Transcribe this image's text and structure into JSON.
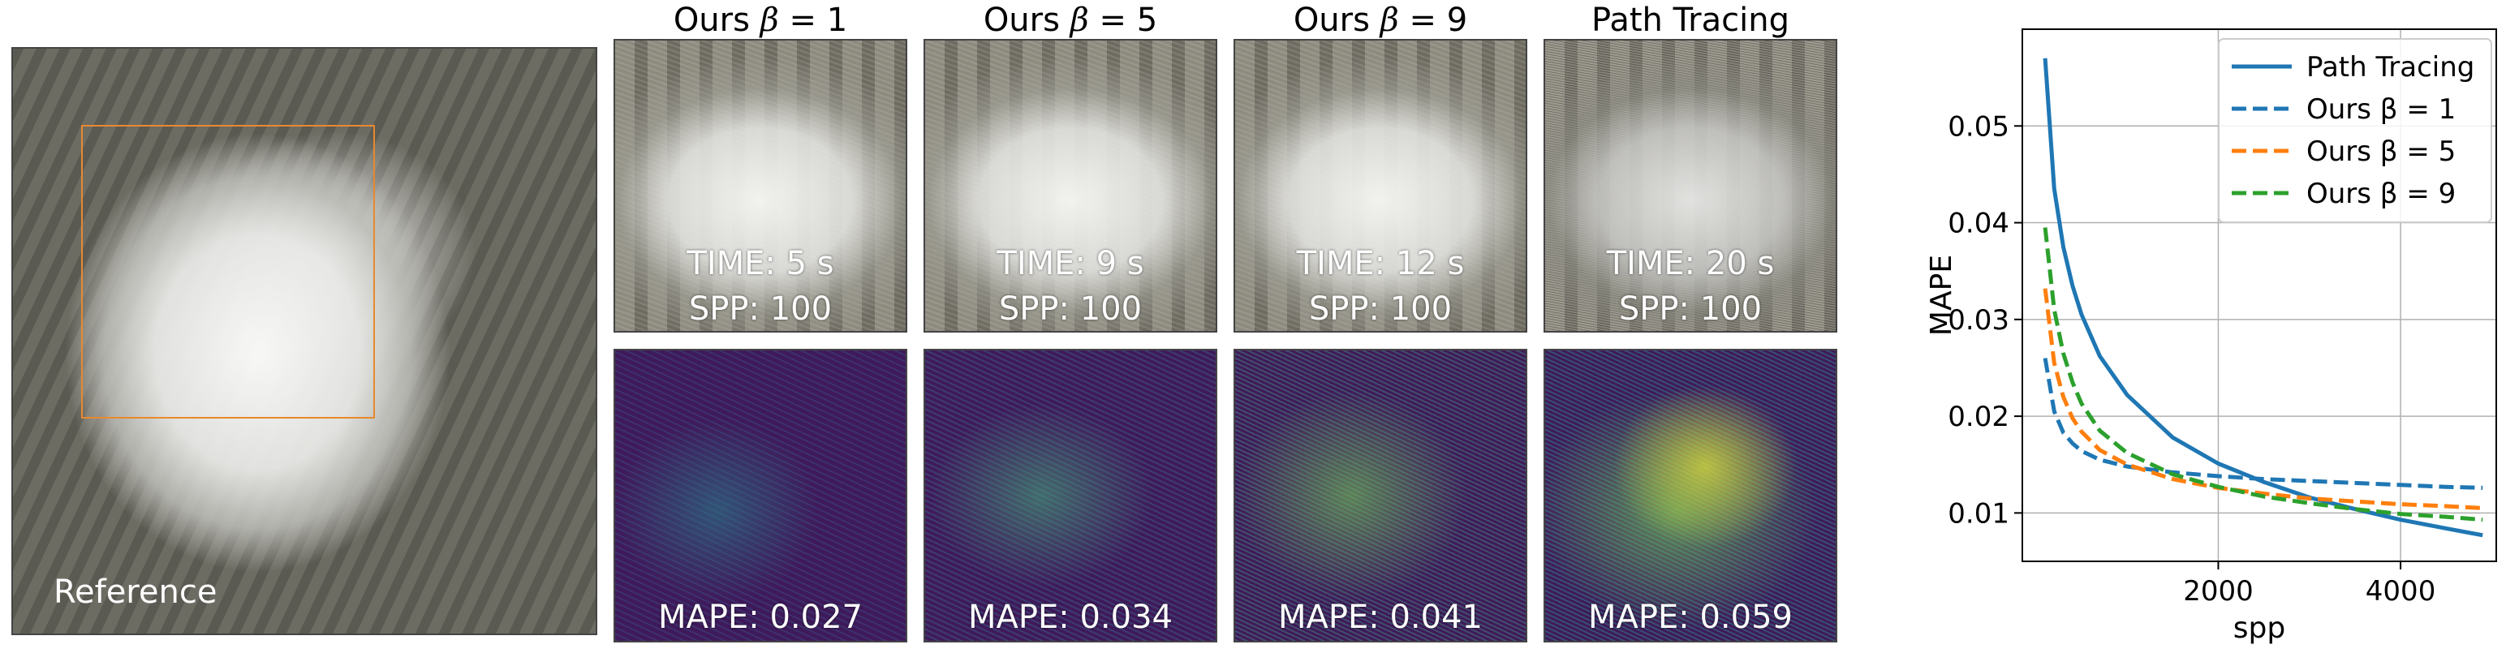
{
  "reference": {
    "label": "Reference"
  },
  "columns": [
    {
      "title_prefix": "Ours ",
      "beta_symbol": "β",
      "beta_value": " = 1",
      "time": "TIME: 5 s",
      "spp": "SPP: 100",
      "mape": "MAPE: 0.027"
    },
    {
      "title_prefix": "Ours ",
      "beta_symbol": "β",
      "beta_value": " = 5",
      "time": "TIME: 9 s",
      "spp": "SPP: 100",
      "mape": "MAPE: 0.034"
    },
    {
      "title_prefix": "Ours ",
      "beta_symbol": "β",
      "beta_value": " = 9",
      "time": "TIME: 12 s",
      "spp": "SPP: 100",
      "mape": "MAPE: 0.041"
    },
    {
      "title_prefix": "Path Tracing",
      "beta_symbol": "",
      "beta_value": "",
      "time": "TIME: 20 s",
      "spp": "SPP: 100",
      "mape": "MAPE: 0.059"
    }
  ],
  "colors": {
    "path_tracing": "#1f77b4",
    "beta1": "#1f77b4",
    "beta5": "#ff7f0e",
    "beta9": "#2ca02c",
    "crop_box": "#e8892d"
  },
  "chart_data": {
    "type": "line",
    "xlabel": "spp",
    "ylabel": "MAPE",
    "xlim": [
      -150,
      5050
    ],
    "ylim": [
      0.005,
      0.06
    ],
    "xticks": [
      2000,
      4000
    ],
    "xtick_labels": [
      "2000",
      "4000"
    ],
    "yticks": [
      0.01,
      0.02,
      0.03,
      0.04,
      0.05
    ],
    "ytick_labels": [
      "0.01",
      "0.02",
      "0.03",
      "0.04",
      "0.05"
    ],
    "grid": true,
    "legend_position": "top-right",
    "x": [
      100,
      200,
      300,
      400,
      500,
      700,
      1000,
      1500,
      2000,
      2500,
      3000,
      3500,
      4000,
      4500,
      4900
    ],
    "series": [
      {
        "name": "Path Tracing",
        "style": "solid",
        "values": [
          0.057,
          0.0435,
          0.0375,
          0.0335,
          0.0305,
          0.0262,
          0.0222,
          0.0178,
          0.0151,
          0.0132,
          0.0116,
          0.0104,
          0.0093,
          0.0084,
          0.0077
        ]
      },
      {
        "name": "Ours β = 1",
        "style": "dashed",
        "values": [
          0.026,
          0.0205,
          0.0183,
          0.0172,
          0.0164,
          0.0155,
          0.0148,
          0.0142,
          0.0138,
          0.0135,
          0.0133,
          0.0131,
          0.0129,
          0.0127,
          0.0126
        ]
      },
      {
        "name": "Ours β = 5",
        "style": "dashed",
        "values": [
          0.0332,
          0.0255,
          0.022,
          0.0198,
          0.0184,
          0.0165,
          0.015,
          0.0135,
          0.0126,
          0.012,
          0.0115,
          0.0112,
          0.0109,
          0.0107,
          0.0105
        ]
      },
      {
        "name": "Ours β = 9",
        "style": "dashed",
        "values": [
          0.0395,
          0.031,
          0.0265,
          0.0235,
          0.0213,
          0.0185,
          0.0162,
          0.014,
          0.0127,
          0.0117,
          0.011,
          0.0104,
          0.0099,
          0.0096,
          0.0093
        ]
      }
    ]
  }
}
